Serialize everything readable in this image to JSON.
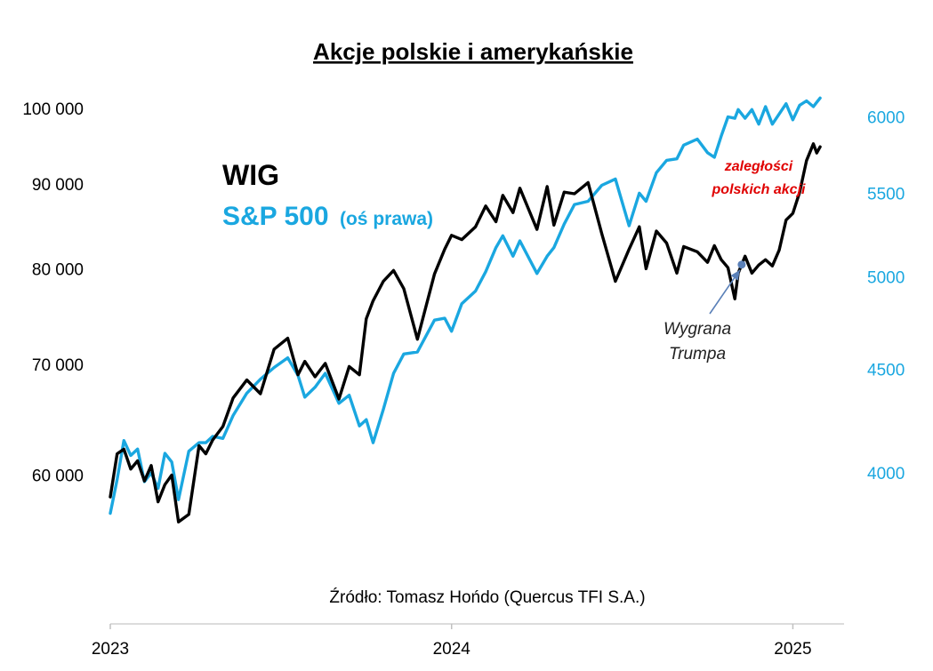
{
  "chart_data": {
    "type": "line",
    "title": "Akcje polskie i amerykańskie",
    "source": "Źródło: Tomasz Hońdo (Quercus TFI S.A.)",
    "x_ticks": [
      "2023",
      "2024",
      "2025"
    ],
    "x_range": [
      2023.0,
      2025.15
    ],
    "left_axis": {
      "ticks": [
        "60 000",
        "70 000",
        "80 000",
        "90 000",
        "100 000"
      ],
      "tick_values": [
        60000,
        70000,
        80000,
        90000,
        100000
      ],
      "range": [
        52000,
        108000
      ],
      "scale": "log"
    },
    "right_axis": {
      "ticks": [
        "4000",
        "4500",
        "5000",
        "5500",
        "6000"
      ],
      "tick_values": [
        4000,
        4500,
        5000,
        5500,
        6000
      ],
      "range": [
        3550,
        6450
      ],
      "scale": "log",
      "label_color": "#1aa7e0"
    },
    "series": [
      {
        "name": "WIG",
        "axis": "left",
        "color": "#000000",
        "x": [
          2023.0,
          2023.02,
          2023.04,
          2023.06,
          2023.08,
          2023.1,
          2023.12,
          2023.14,
          2023.16,
          2023.18,
          2023.2,
          2023.23,
          2023.26,
          2023.28,
          2023.3,
          2023.33,
          2023.36,
          2023.4,
          2023.44,
          2023.48,
          2023.52,
          2023.55,
          2023.57,
          2023.6,
          2023.63,
          2023.67,
          2023.7,
          2023.73,
          2023.75,
          2023.77,
          2023.8,
          2023.83,
          2023.86,
          2023.9,
          2023.95,
          2023.98,
          2024.0,
          2024.03,
          2024.07,
          2024.1,
          2024.13,
          2024.15,
          2024.18,
          2024.2,
          2024.25,
          2024.28,
          2024.3,
          2024.33,
          2024.36,
          2024.4,
          2024.44,
          2024.48,
          2024.52,
          2024.55,
          2024.57,
          2024.6,
          2024.63,
          2024.66,
          2024.68,
          2024.72,
          2024.75,
          2024.77,
          2024.79,
          2024.81,
          2024.83,
          2024.84,
          2024.86,
          2024.88,
          2024.9,
          2024.92,
          2024.94,
          2024.96,
          2024.98,
          2025.0,
          2025.02,
          2025.04,
          2025.06,
          2025.07,
          2025.08
        ],
        "values": [
          58200,
          61800,
          62200,
          60500,
          61200,
          59500,
          60800,
          57800,
          59200,
          60000,
          56200,
          56800,
          62500,
          61800,
          63000,
          64200,
          66800,
          68500,
          67200,
          71500,
          72600,
          69000,
          70300,
          68800,
          70100,
          66700,
          69800,
          69000,
          74600,
          76500,
          78600,
          79800,
          77800,
          72500,
          79400,
          82200,
          83800,
          83300,
          84800,
          87300,
          85400,
          88600,
          86500,
          89500,
          84500,
          89700,
          85000,
          89000,
          88800,
          90200,
          84000,
          78600,
          82200,
          84800,
          80000,
          84300,
          82900,
          79500,
          82500,
          81900,
          80700,
          82600,
          81000,
          80100,
          76700,
          79500,
          81400,
          79500,
          80400,
          81000,
          80300,
          82100,
          85600,
          86400,
          89000,
          93000,
          95200,
          94000,
          94800
        ]
      },
      {
        "name": "S&P 500",
        "axis": "right",
        "color": "#1aa7e0",
        "x": [
          2023.0,
          2023.02,
          2023.04,
          2023.06,
          2023.08,
          2023.1,
          2023.12,
          2023.14,
          2023.16,
          2023.18,
          2023.2,
          2023.23,
          2023.26,
          2023.28,
          2023.3,
          2023.33,
          2023.36,
          2023.4,
          2023.44,
          2023.48,
          2023.52,
          2023.55,
          2023.57,
          2023.6,
          2023.63,
          2023.67,
          2023.7,
          2023.73,
          2023.75,
          2023.77,
          2023.8,
          2023.83,
          2023.86,
          2023.9,
          2023.95,
          2023.98,
          2024.0,
          2024.03,
          2024.07,
          2024.1,
          2024.13,
          2024.15,
          2024.18,
          2024.2,
          2024.25,
          2024.28,
          2024.3,
          2024.33,
          2024.36,
          2024.4,
          2024.44,
          2024.48,
          2024.52,
          2024.55,
          2024.57,
          2024.6,
          2024.63,
          2024.66,
          2024.68,
          2024.72,
          2024.75,
          2024.77,
          2024.79,
          2024.81,
          2024.83,
          2024.84,
          2024.86,
          2024.88,
          2024.9,
          2024.92,
          2024.94,
          2024.96,
          2024.98,
          2025.0,
          2025.02,
          2025.04,
          2025.06,
          2025.07,
          2025.08
        ],
        "values": [
          3820,
          3970,
          4150,
          4080,
          4110,
          3960,
          4000,
          3930,
          4090,
          4050,
          3880,
          4100,
          4140,
          4140,
          4170,
          4160,
          4270,
          4380,
          4450,
          4510,
          4560,
          4470,
          4360,
          4410,
          4480,
          4330,
          4370,
          4220,
          4250,
          4140,
          4300,
          4480,
          4580,
          4590,
          4760,
          4770,
          4700,
          4850,
          4920,
          5030,
          5170,
          5240,
          5120,
          5210,
          5020,
          5120,
          5170,
          5310,
          5430,
          5450,
          5550,
          5590,
          5300,
          5500,
          5450,
          5630,
          5710,
          5720,
          5810,
          5850,
          5760,
          5730,
          5870,
          6000,
          5990,
          6050,
          5990,
          6050,
          5950,
          6070,
          5950,
          6020,
          6090,
          5980,
          6080,
          6110,
          6070,
          6100,
          6130
        ]
      }
    ],
    "legend": {
      "wig_label": "WIG",
      "sp_label": "S&P 500",
      "sp_note": "(oś prawa)",
      "placement": "upper-left"
    },
    "annotations": {
      "backlog_line1": "zaległości",
      "backlog_line2": "polskich akcji",
      "trump_line1": "Wygrana",
      "trump_line2": "Trumpa",
      "trump_event_x": 2024.85
    }
  }
}
